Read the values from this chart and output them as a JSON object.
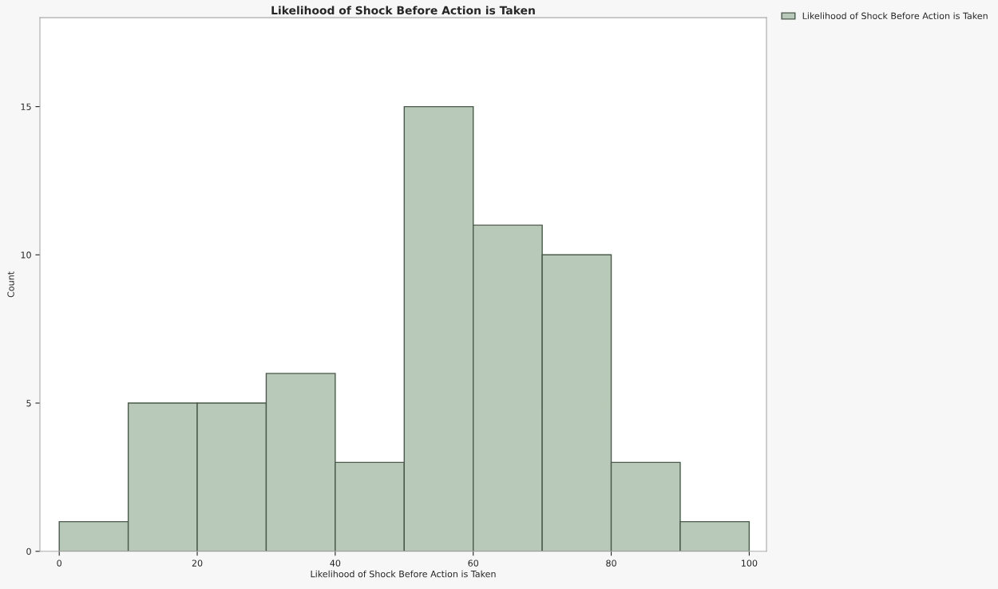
{
  "chart_data": {
    "type": "histogram",
    "title": "Likelihood of Shock Before Action is Taken",
    "xlabel": "Likelihood of Shock Before Action is Taken",
    "ylabel": "Count",
    "bins": [
      0,
      10,
      20,
      30,
      40,
      50,
      60,
      70,
      80,
      90,
      100
    ],
    "series": [
      {
        "name": "Likelihood of Shock Before Action is Taken",
        "color": "#b9c9b9",
        "values": [
          1,
          5,
          5,
          6,
          3,
          15,
          11,
          10,
          3,
          1
        ]
      }
    ],
    "xlim": [
      -2.8,
      102.5
    ],
    "xticks": [
      0,
      20,
      40,
      60,
      80,
      100
    ],
    "ylim": [
      0,
      18
    ],
    "yticks": [
      0,
      5,
      10,
      15
    ],
    "grid": false,
    "legend": "top right"
  }
}
